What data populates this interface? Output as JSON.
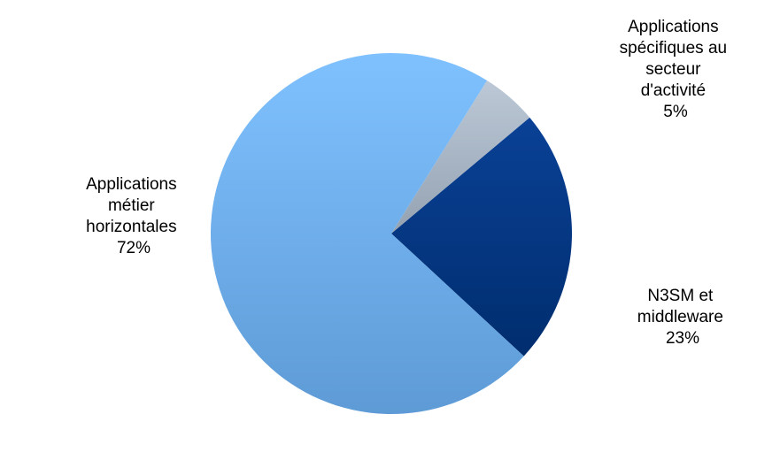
{
  "chart_data": {
    "type": "pie",
    "start_angle_deg": -58,
    "direction": "clockwise",
    "slices": [
      {
        "name": "Applications spécifiques au secteur d'activité",
        "value": 5,
        "label_lines": [
          "Applications",
          "spécifiques au",
          "secteur",
          "d'activité",
          "5%"
        ],
        "color": "#bcc8d6",
        "color_dark": "#94a2b2"
      },
      {
        "name": "N3SM et middleware",
        "value": 23,
        "label_lines": [
          "N3SM et",
          "middleware",
          "23%"
        ],
        "color": "#0a4196",
        "color_dark": "#002d6e"
      },
      {
        "name": "Applications métier horizontales",
        "value": 72,
        "label_lines": [
          "Applications",
          "métier",
          "horizontales",
          "72%"
        ],
        "color": "#7fc1ff",
        "color_dark": "#5e9bd6"
      }
    ]
  }
}
